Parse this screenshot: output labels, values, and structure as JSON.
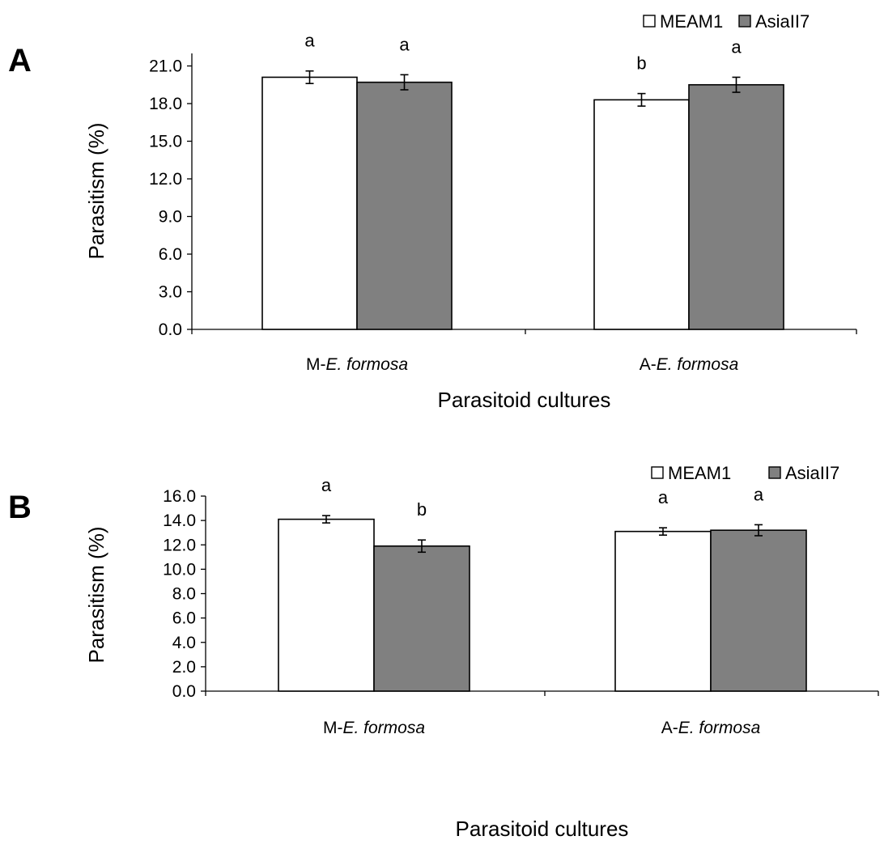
{
  "chart_data": [
    {
      "type": "bar",
      "panel_label": "A",
      "categories": [
        {
          "prefix": "M-",
          "italic": "E. formosa"
        },
        {
          "prefix": "A-",
          "italic": "E. formosa"
        }
      ],
      "series": [
        {
          "name": "MEAM1",
          "values": [
            20.1,
            18.3
          ],
          "errors": [
            0.5,
            0.5
          ],
          "letters": [
            "a",
            "b"
          ]
        },
        {
          "name": "AsiaII7",
          "values": [
            19.7,
            19.5
          ],
          "errors": [
            0.6,
            0.6
          ],
          "letters": [
            "a",
            "a"
          ]
        }
      ],
      "ylabel": "Parasitism (%)",
      "xlabel": "Parasitoid cultures",
      "ylim": [
        0,
        22
      ],
      "yticks": [
        "0.0",
        "3.0",
        "6.0",
        "9.0",
        "12.0",
        "15.0",
        "18.0",
        "21.0"
      ],
      "ytick_values": [
        0,
        3,
        6,
        9,
        12,
        15,
        18,
        21
      ],
      "legend_position": "top-right",
      "grid": false
    },
    {
      "type": "bar",
      "panel_label": "B",
      "categories": [
        {
          "prefix": "M-",
          "italic": "E. formosa"
        },
        {
          "prefix": "A-",
          "italic": "E. formosa"
        }
      ],
      "series": [
        {
          "name": "MEAM1",
          "values": [
            14.1,
            13.1
          ],
          "errors": [
            0.3,
            0.3
          ],
          "letters": [
            "a",
            "a"
          ]
        },
        {
          "name": "AsiaII7",
          "values": [
            11.9,
            13.2
          ],
          "errors": [
            0.5,
            0.45
          ],
          "letters": [
            "b",
            "a"
          ]
        }
      ],
      "ylabel": "Parasitism (%)",
      "xlabel": "Parasitoid cultures",
      "ylim": [
        0,
        16
      ],
      "yticks": [
        "0.0",
        "2.0",
        "4.0",
        "6.0",
        "8.0",
        "10.0",
        "12.0",
        "14.0",
        "16.0"
      ],
      "ytick_values": [
        0,
        2,
        4,
        6,
        8,
        10,
        12,
        14,
        16
      ],
      "legend_position": "top-right",
      "grid": false
    }
  ],
  "colors": {
    "MEAM1": "#ffffff",
    "AsiaII7": "#808080",
    "axis": "#000000"
  }
}
